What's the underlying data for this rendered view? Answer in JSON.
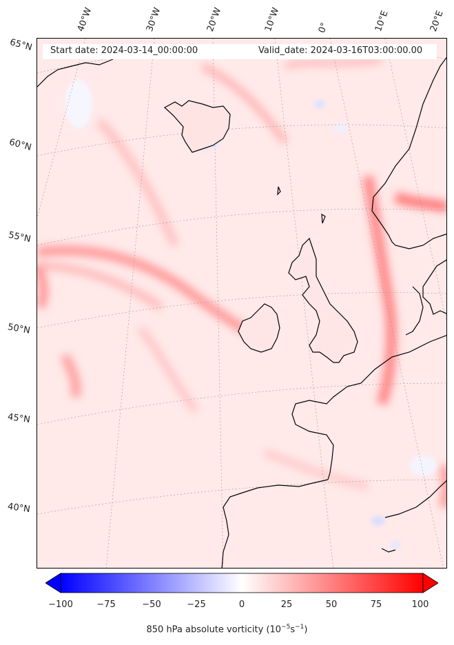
{
  "map": {
    "longitude_labels": [
      "40°W",
      "30°W",
      "20°W",
      "10°W",
      "0°",
      "10°E",
      "20°E"
    ],
    "latitude_labels": [
      "65°N",
      "60°N",
      "55°N",
      "50°N",
      "45°N",
      "40°N"
    ],
    "start_date": "Start date: 2024-03-14_00:00:00",
    "valid_date": "Valid_date: 2024-03-16T03:00:00.00"
  },
  "colorbar": {
    "ticks": [
      "−100",
      "−75",
      "−50",
      "−25",
      "0",
      "25",
      "50",
      "75",
      "100"
    ],
    "range": [
      -100,
      100
    ],
    "colormap": "bwr",
    "extend": "both",
    "label_prefix": "850 hPa absolute vorticity (10",
    "label_exp1": "−5",
    "label_mid": "s",
    "label_exp2": "−1",
    "label_suffix": ")"
  },
  "colors": {
    "min": "#0000ff",
    "mid": "#ffffff",
    "max": "#ff0000",
    "coastline": "#000000",
    "gridline": "#999999"
  }
}
